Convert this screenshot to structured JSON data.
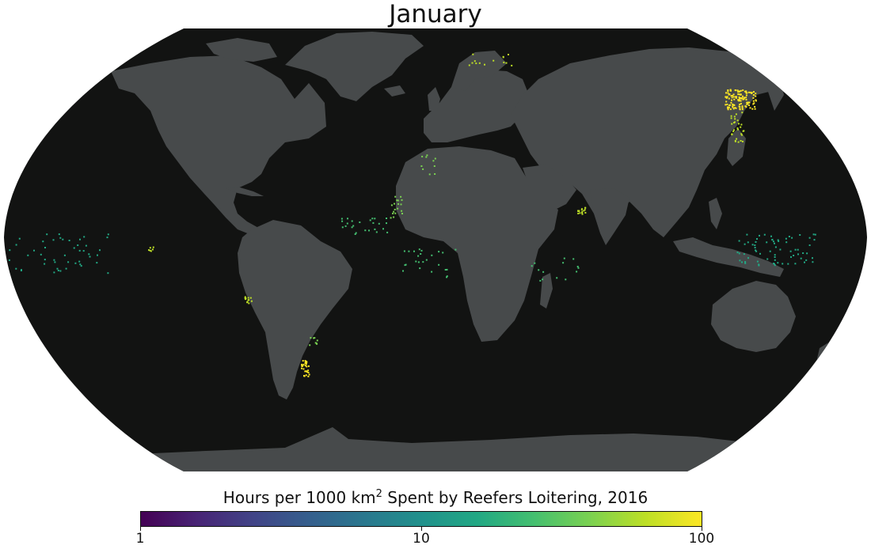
{
  "map": {
    "title": "January",
    "projection": "robinson",
    "ocean_color": "#121312",
    "land_color": "#474a4b",
    "point_color_scale": "viridis",
    "hotspots": [
      {
        "region": "Sea of Okhotsk",
        "level": "high"
      },
      {
        "region": "Southwest Atlantic off Argentina",
        "level": "high"
      },
      {
        "region": "Southeast Pacific off Peru",
        "level": "high"
      },
      {
        "region": "Arabian Sea",
        "level": "high"
      },
      {
        "region": "West Africa coast",
        "level": "medium"
      },
      {
        "region": "Central Pacific",
        "level": "low"
      },
      {
        "region": "Western Pacific",
        "level": "low"
      },
      {
        "region": "Barents Sea",
        "level": "medium"
      }
    ]
  },
  "colorbar": {
    "label_main": "Hours per 1000 km",
    "label_sup": "2",
    "label_rest": " Spent by Reefers Loitering, 2016",
    "scale": "log",
    "ticks": [
      {
        "label": "1",
        "value": 1
      },
      {
        "label": "10",
        "value": 10
      },
      {
        "label": "100",
        "value": 100
      }
    ]
  }
}
